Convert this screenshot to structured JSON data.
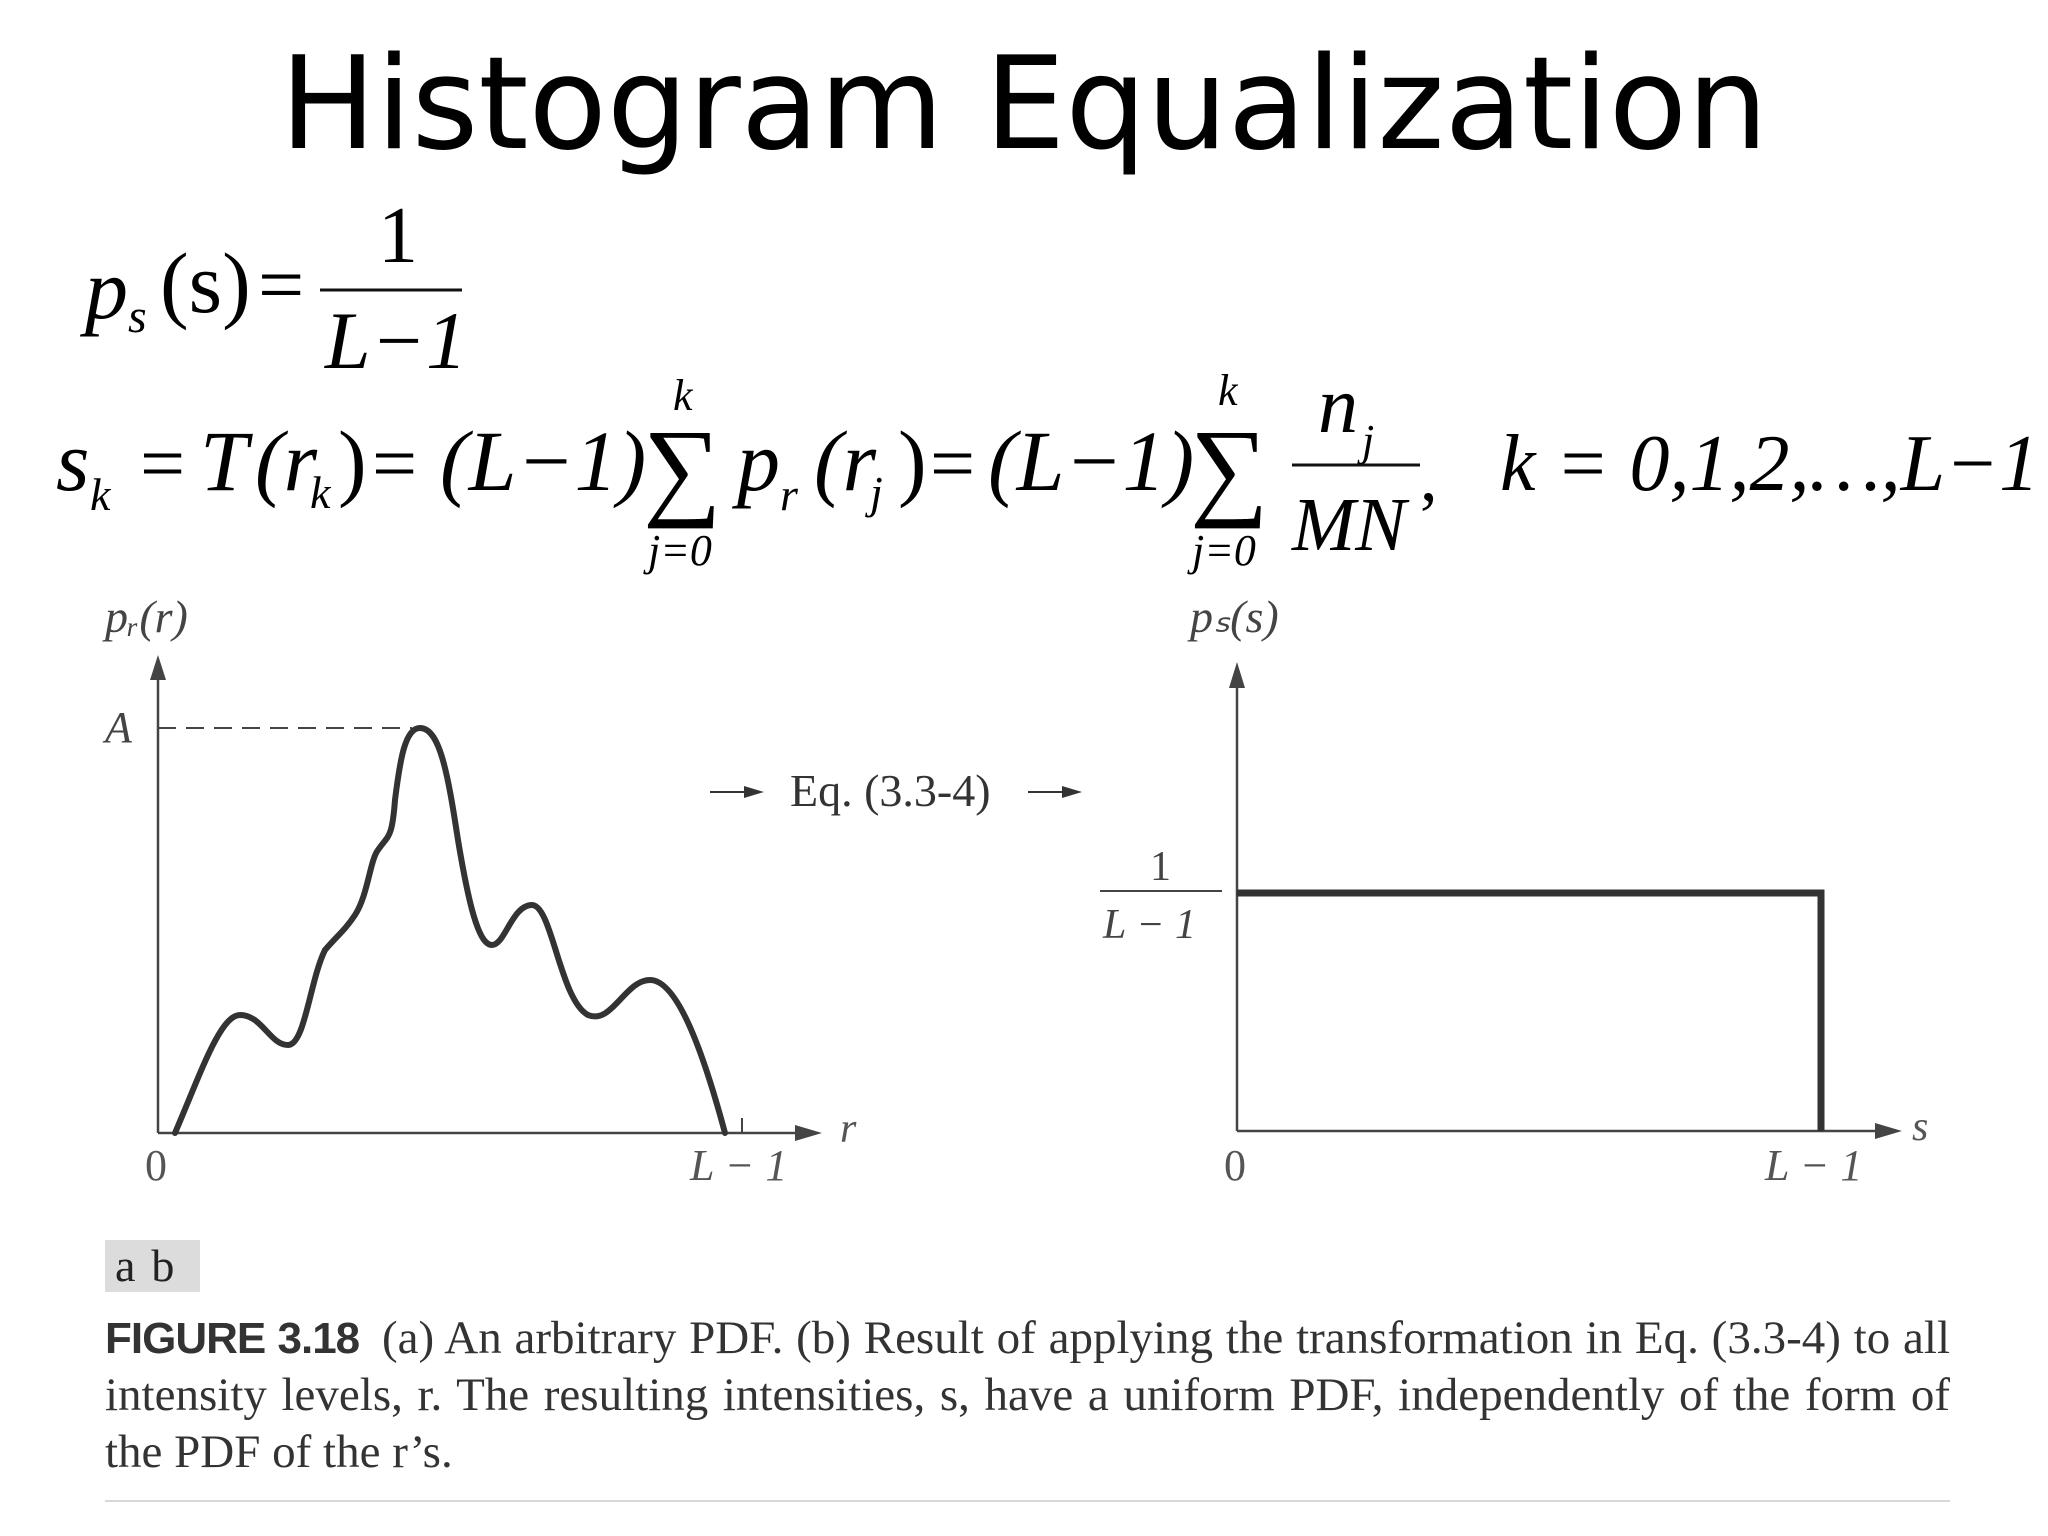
{
  "title": "Histogram Equalization",
  "equation1": {
    "lhs_p": "p",
    "lhs_sub": "s",
    "lhs_arg": "(s)",
    "eq": "=",
    "numerator": "1",
    "denominator": "L−1"
  },
  "equation2": {
    "s": "s",
    "s_sub": "k",
    "eq1": "=",
    "T": "T",
    "T_arg_open": "(r",
    "T_arg_sub": "k",
    "T_arg_close": ")",
    "eq2": "=",
    "factor1": "(L−1)",
    "sum1_top": "k",
    "sum1_bottom": "j=0",
    "sum_symbol": "∑",
    "p": "p",
    "p_sub": "r",
    "p_arg_open": "(r",
    "p_arg_sub": "j",
    "p_arg_close": ")",
    "eq3": "=",
    "factor2": "(L−1)",
    "sum2_top": "k",
    "sum2_bottom": "j=0",
    "frac_num": "n",
    "frac_num_sub": "j",
    "frac_den": "MN",
    "comma": ",",
    "k_range": "k = 0,1,2,…,L−1"
  },
  "panel_a": {
    "y_label": "pᵣ(r)",
    "peak_label": "A",
    "x_origin": "0",
    "x_end": "L − 1",
    "x_axis_name": "r"
  },
  "arrow_label": "Eq. (3.3-4)",
  "panel_b": {
    "y_label": "pₛ(s)",
    "level_num": "1",
    "level_den": "L − 1",
    "x_origin": "0",
    "x_end": "L − 1",
    "x_axis_name": "s"
  },
  "subfigure_tags": [
    "a",
    "b"
  ],
  "caption": {
    "figure_id": "FIGURE 3.18",
    "text": "(a) An arbitrary PDF. (b) Result of applying the transformation in Eq. (3.3-4) to all intensity levels, r. The resulting intensities, s, have a uniform PDF, independently of the form of the PDF of the r’s."
  },
  "colors": {
    "curve": "#333333",
    "axis": "#444444",
    "text": "#111111",
    "tag_bg": "#dcdcdc"
  }
}
